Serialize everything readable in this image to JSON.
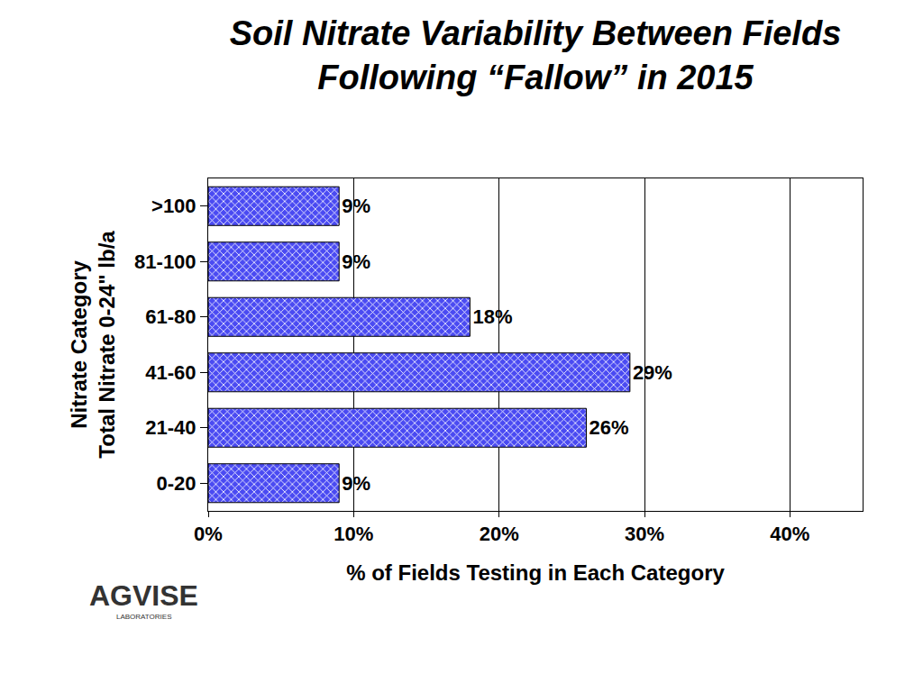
{
  "chart_data": {
    "type": "bar",
    "orientation": "horizontal",
    "title": "Soil Nitrate Variability Between Fields\nFollowing “Fallow” in 2015",
    "x_label": "% of Fields Testing in Each Category",
    "y_label": "Nitrate Category\nTotal Nitrate 0-24\" lb/a",
    "categories": [
      "0-20",
      "21-40",
      "41-60",
      "61-80",
      "81-100",
      ">100"
    ],
    "values": [
      9,
      26,
      29,
      18,
      9,
      9
    ],
    "value_labels": [
      "9%",
      "26%",
      "29%",
      "18%",
      "9%",
      "9%"
    ],
    "data_labels": true,
    "color": "#4a4af2",
    "xlim": [
      0,
      45
    ],
    "xticks": [
      {
        "value": 0,
        "label": "0%"
      },
      {
        "value": 10,
        "label": "10%"
      },
      {
        "value": 20,
        "label": "20%"
      },
      {
        "value": 30,
        "label": "30%"
      },
      {
        "value": 40,
        "label": "40%"
      }
    ],
    "grid": true,
    "annotations": [
      "AGVISE",
      "LABORATORIES"
    ]
  }
}
